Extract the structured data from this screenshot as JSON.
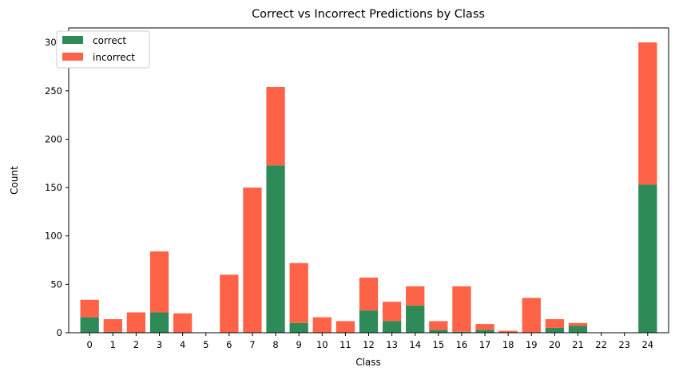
{
  "chart_data": {
    "type": "bar",
    "stacked": true,
    "title": "Correct vs Incorrect Predictions by Class",
    "xlabel": "Class",
    "ylabel": "Count",
    "ylim": [
      0,
      315
    ],
    "yticks": [
      0,
      50,
      100,
      150,
      200,
      250,
      300
    ],
    "legend_position": "top-left",
    "categories": [
      "0",
      "1",
      "2",
      "3",
      "4",
      "5",
      "6",
      "7",
      "8",
      "9",
      "10",
      "11",
      "12",
      "13",
      "14",
      "15",
      "16",
      "17",
      "18",
      "19",
      "20",
      "21",
      "22",
      "23",
      "24"
    ],
    "series": [
      {
        "name": "correct",
        "color": "#2e8b57",
        "values": [
          16,
          1,
          0,
          21,
          0,
          0,
          0,
          0,
          173,
          10,
          0,
          0,
          23,
          12,
          28,
          3,
          1,
          3,
          0,
          0,
          5,
          7,
          0,
          0,
          153
        ]
      },
      {
        "name": "incorrect",
        "color": "#ff6347",
        "values": [
          18,
          13,
          21,
          63,
          20,
          0,
          60,
          150,
          81,
          62,
          16,
          12,
          34,
          20,
          20,
          9,
          47,
          6,
          2,
          36,
          9,
          3,
          0,
          0,
          147
        ]
      }
    ]
  }
}
